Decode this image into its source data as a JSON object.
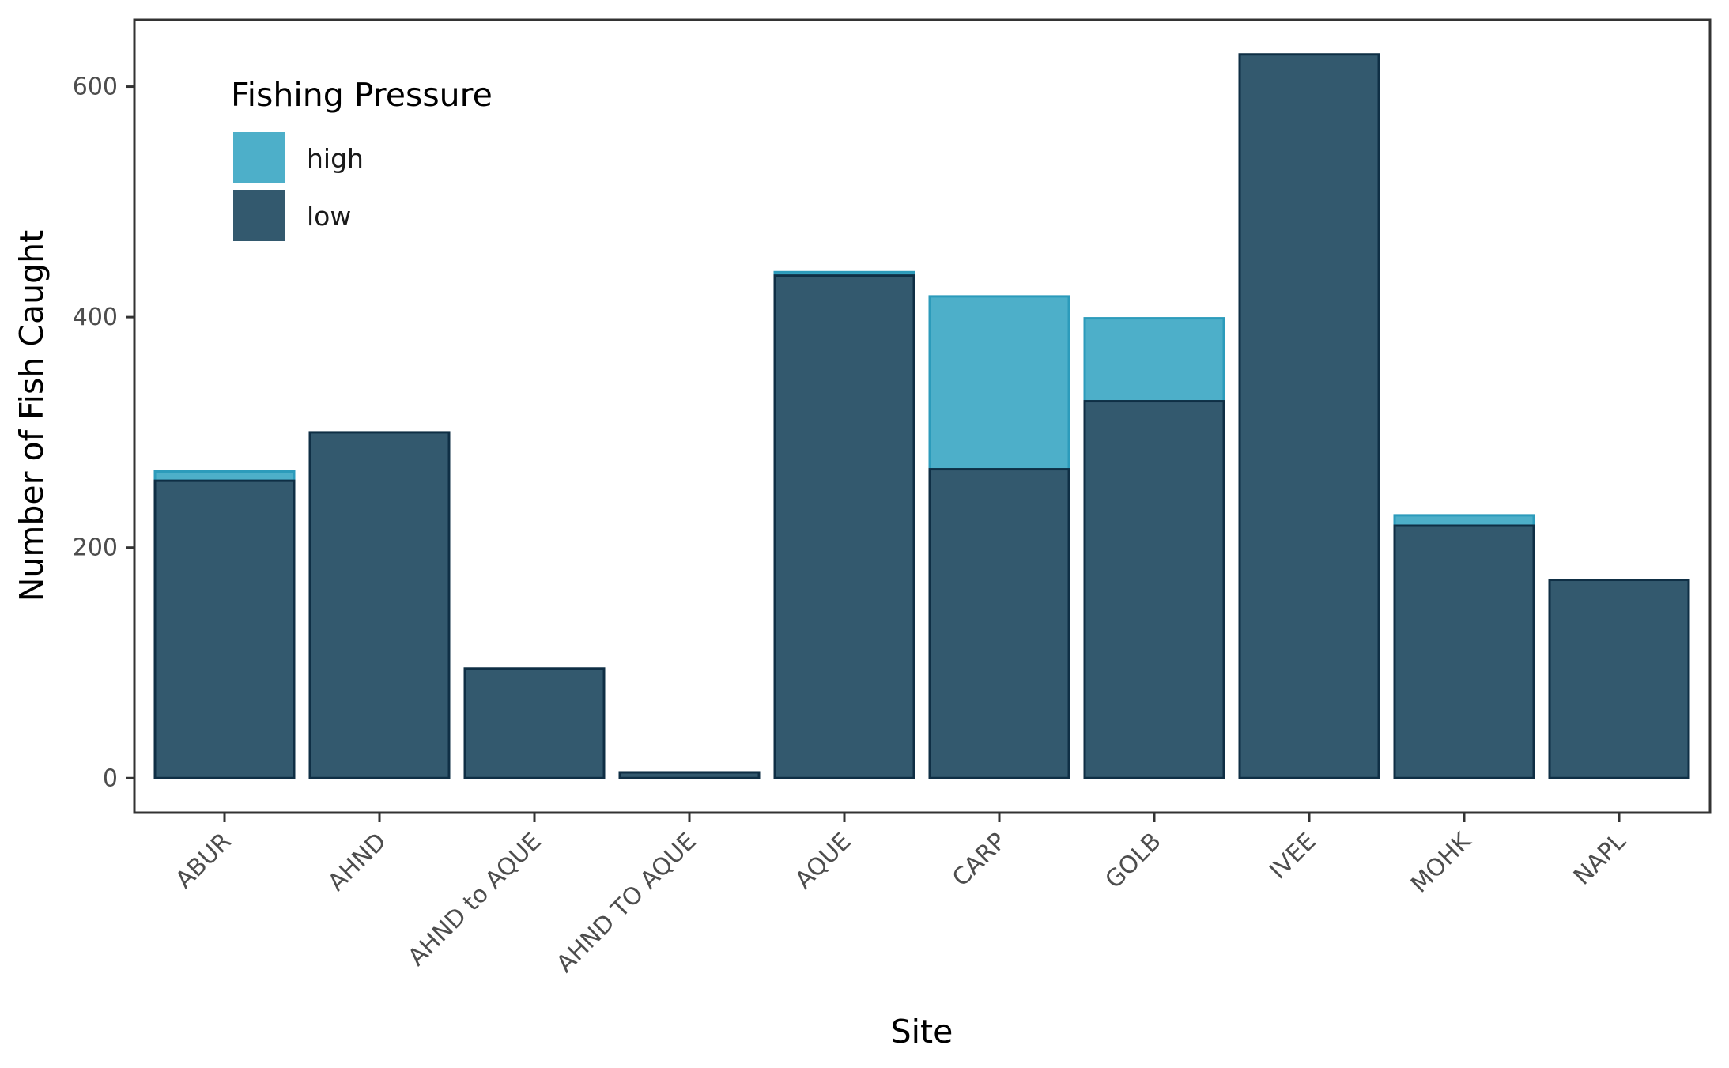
{
  "chart_data": {
    "type": "bar",
    "stacked": true,
    "categories": [
      "ABUR",
      "AHND",
      "AHND to AQUE",
      "AHND TO AQUE",
      "AQUE",
      "CARP",
      "GOLB",
      "IVEE",
      "MOHK",
      "NAPL"
    ],
    "series": [
      {
        "name": "high",
        "color": "#4DAFC9",
        "values": [
          8,
          0,
          0,
          0,
          3,
          150,
          72,
          0,
          9,
          0
        ]
      },
      {
        "name": "low",
        "color": "#33596E",
        "values": [
          258,
          300,
          95,
          5,
          436,
          268,
          327,
          628,
          219,
          172
        ]
      }
    ],
    "xlabel": "Site",
    "ylabel": "Number of Fish Caught",
    "yticks": [
      0,
      200,
      400,
      600
    ],
    "ylim": [
      -30,
      658
    ],
    "legend": {
      "title": "Fishing Pressure",
      "placement": "top-left"
    },
    "grid": false,
    "bar_edge_color": "#0F2F45"
  }
}
